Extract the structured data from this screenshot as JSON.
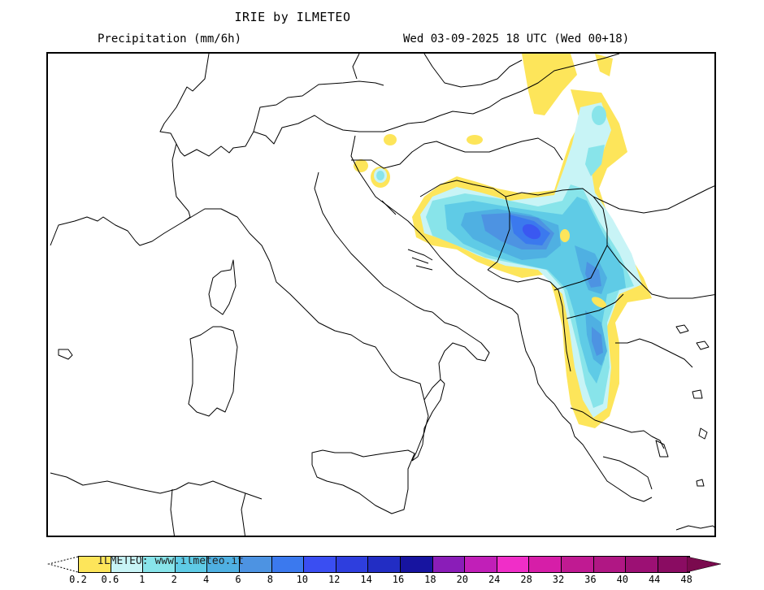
{
  "header": {
    "title": "IRIE by ILMETEO",
    "variable": "Precipitation (mm/6h)",
    "valid_time": "Wed 03-09-2025 18 UTC (Wed 00+18)"
  },
  "map": {
    "region": "Italy / Balkans / Central Mediterranean",
    "background_color": "#ffffff",
    "outline_color": "#000000",
    "precip_areas": [
      {
        "area": "Bosnia / Croatia interior",
        "max_class": "10-12 mm"
      },
      {
        "area": "Serbia / Kosovo / North Macedonia",
        "max_class": "6-8 mm"
      },
      {
        "area": "Albania / NW Greece (Pindus)",
        "max_class": "6-8 mm"
      },
      {
        "area": "Hungary / Slovakia border",
        "max_class": "1-2 mm"
      },
      {
        "area": "Slovenia / Istria",
        "max_class": "1-2 mm"
      }
    ]
  },
  "legend": {
    "credit": "ILMETEO:  www.ilmeteo.it",
    "below_min_color": "#ffffff",
    "above_max_color": "#7a0a4e",
    "swatches": [
      {
        "from": "0.2",
        "to": "0.6",
        "color": "#fde55a"
      },
      {
        "from": "0.6",
        "to": "1",
        "color": "#c8f4f6"
      },
      {
        "from": "1",
        "to": "2",
        "color": "#88e4ea"
      },
      {
        "from": "2",
        "to": "4",
        "color": "#5fcbe6"
      },
      {
        "from": "4",
        "to": "6",
        "color": "#4fb0e2"
      },
      {
        "from": "6",
        "to": "8",
        "color": "#4d93e2"
      },
      {
        "from": "8",
        "to": "10",
        "color": "#3b79ee"
      },
      {
        "from": "10",
        "to": "12",
        "color": "#3a4ef2"
      },
      {
        "from": "12",
        "to": "14",
        "color": "#2e3ede"
      },
      {
        "from": "14",
        "to": "16",
        "color": "#222dc4"
      },
      {
        "from": "16",
        "to": "18",
        "color": "#1714a0"
      },
      {
        "from": "18",
        "to": "20",
        "color": "#8a1db8"
      },
      {
        "from": "20",
        "to": "24",
        "color": "#c11fb8"
      },
      {
        "from": "24",
        "to": "28",
        "color": "#f02ec8"
      },
      {
        "from": "28",
        "to": "32",
        "color": "#d61ea8"
      },
      {
        "from": "32",
        "to": "36",
        "color": "#c01a92"
      },
      {
        "from": "36",
        "to": "40",
        "color": "#b01784"
      },
      {
        "from": "40",
        "to": "44",
        "color": "#9c1074"
      },
      {
        "from": "44",
        "to": "48",
        "color": "#8a0c62"
      }
    ],
    "tick_labels": [
      "0.2",
      "0.6",
      "1",
      "2",
      "4",
      "6",
      "8",
      "10",
      "12",
      "14",
      "16",
      "18",
      "20",
      "24",
      "28",
      "32",
      "36",
      "40",
      "44",
      "48"
    ]
  }
}
